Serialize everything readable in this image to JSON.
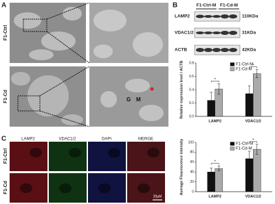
{
  "panel_labels": [
    "A",
    "B",
    "C"
  ],
  "em": {
    "row_labels": [
      "F1-Ctrl",
      "F1-Cd"
    ],
    "annotations": [
      "G",
      "M"
    ]
  },
  "blot": {
    "groups": [
      "F1-Ctrl-M",
      "F1-Cd-M"
    ],
    "rows": [
      {
        "protein": "LAMP2",
        "size": "110KDa"
      },
      {
        "protein": "VDAC1/2",
        "size": "31KDa"
      },
      {
        "protein": "ACTB",
        "size": "42KDa"
      }
    ]
  },
  "fluorescence": {
    "columns": [
      "LAMP2",
      "VDAC1/2",
      "DAPI",
      "MERGE"
    ],
    "rows": [
      "F1-Ctrl",
      "F1-Cd"
    ],
    "scale_bar": "20μM"
  },
  "chart_data": [
    {
      "type": "bar",
      "y_label": "Relative expression level / ACTB",
      "categories": [
        "LAMP2",
        "VDAC1/2"
      ],
      "series": [
        {
          "name": "F1-Ctrl-M",
          "color": "#111111",
          "values": [
            0.24,
            0.34
          ],
          "errors": [
            0.12,
            0.12
          ]
        },
        {
          "name": "F1-Cd-M",
          "color": "#aaaaaa",
          "values": [
            0.41,
            0.64
          ],
          "errors": [
            0.08,
            0.06
          ]
        }
      ],
      "significance": [
        "*",
        "*"
      ],
      "ylim": [
        0,
        0.8
      ],
      "yticks": [
        {
          "value": 0,
          "label": "0.0"
        },
        {
          "value": 0.2,
          "label": "0.2"
        },
        {
          "value": 0.4,
          "label": "0.4"
        },
        {
          "value": 0.6,
          "label": "0.6"
        },
        {
          "value": 0.8,
          "label": "0.8"
        }
      ],
      "legend": "top-left"
    },
    {
      "type": "bar",
      "y_label": "Average Flourescence intensity",
      "categories": [
        "LAMP2",
        "VDAC1/2"
      ],
      "series": [
        {
          "name": "F1-Ctrl-M",
          "color": "#111111",
          "values": [
            40,
            67
          ],
          "errors": [
            8,
            15
          ]
        },
        {
          "name": "F1-Cd-M",
          "color": "#aaaaaa",
          "values": [
            47,
            86
          ],
          "errors": [
            5,
            10
          ]
        }
      ],
      "significance": [
        "*",
        "*"
      ],
      "ylim": [
        0,
        100
      ],
      "yticks": [
        0,
        20,
        40,
        60,
        80,
        100
      ],
      "legend": "top-left"
    }
  ]
}
